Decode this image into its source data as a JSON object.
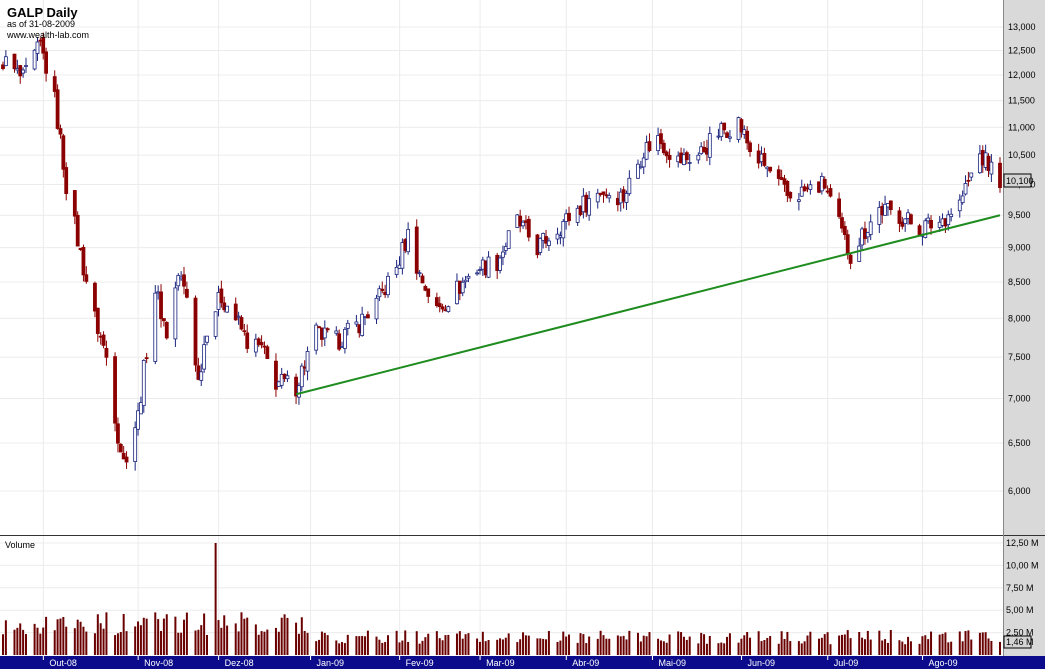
{
  "header": {
    "title": "GALP Daily",
    "as_of": "as of 31-08-2009",
    "source": "www.wealth-lab.com"
  },
  "volume_panel": {
    "label": "Volume",
    "current_label": "1,46 M"
  },
  "price_panel": {
    "current_label": "10,100"
  },
  "colors": {
    "up_body": "#ffffff",
    "up_outline": "#1a237e",
    "down_body": "#8b0000",
    "trendline": "#1e8c1e",
    "volume_bar": "#6a0000",
    "axis_strip": "#0b0b8c",
    "label_bg": "#d4d4d4"
  },
  "chart_data": [
    {
      "type": "candlestick",
      "title": "GALP Daily",
      "subtitle": "as of 31-08-2009",
      "x_tick_labels": [
        "Out-08",
        "Nov-08",
        "Dez-08",
        "Jan-09",
        "Fev-09",
        "Mar-09",
        "Abr-09",
        "Mai-09",
        "Jun-09",
        "Jul-09",
        "Ago-09"
      ],
      "x_range": [
        "2008-09-18",
        "2009-08-31"
      ],
      "y_tick_labels": [
        "13,000",
        "12,500",
        "12,000",
        "11,500",
        "11,000",
        "10,500",
        "10,000",
        "9,500",
        "9,000",
        "8,500",
        "8,000",
        "7,500",
        "7,000",
        "6,500",
        "6,000"
      ],
      "y_scale": "log",
      "ylim": [
        5500,
        13500
      ],
      "last_close": 10.1,
      "close_path": [
        [
          "2008-09-18",
          12.3
        ],
        [
          "2008-09-25",
          11.9
        ],
        [
          "2008-10-01",
          12.6
        ],
        [
          "2008-10-06",
          11.5
        ],
        [
          "2008-10-10",
          10.0
        ],
        [
          "2008-10-15",
          8.9
        ],
        [
          "2008-10-20",
          8.0
        ],
        [
          "2008-10-24",
          7.5
        ],
        [
          "2008-10-28",
          6.6
        ],
        [
          "2008-10-30",
          6.3
        ],
        [
          "2008-11-04",
          6.8
        ],
        [
          "2008-11-07",
          7.6
        ],
        [
          "2008-11-10",
          8.4
        ],
        [
          "2008-11-14",
          7.8
        ],
        [
          "2008-11-18",
          8.6
        ],
        [
          "2008-11-21",
          8.3
        ],
        [
          "2008-11-25",
          7.2
        ],
        [
          "2008-11-28",
          7.9
        ],
        [
          "2008-12-03",
          8.3
        ],
        [
          "2008-12-08",
          8.0
        ],
        [
          "2008-12-12",
          7.7
        ],
        [
          "2008-12-17",
          7.6
        ],
        [
          "2008-12-22",
          7.2
        ],
        [
          "2008-12-29",
          7.15
        ],
        [
          "2009-01-05",
          7.8
        ],
        [
          "2009-01-12",
          7.7
        ],
        [
          "2009-01-19",
          7.9
        ],
        [
          "2009-01-26",
          8.2
        ],
        [
          "2009-02-02",
          8.7
        ],
        [
          "2009-02-06",
          9.2
        ],
        [
          "2009-02-10",
          8.6
        ],
        [
          "2009-02-16",
          8.1
        ],
        [
          "2009-02-23",
          8.4
        ],
        [
          "2009-03-02",
          8.7
        ],
        [
          "2009-03-09",
          8.8
        ],
        [
          "2009-03-16",
          9.4
        ],
        [
          "2009-03-23",
          9.0
        ],
        [
          "2009-03-30",
          9.3
        ],
        [
          "2009-04-06",
          9.6
        ],
        [
          "2009-04-14",
          9.9
        ],
        [
          "2009-04-22",
          9.8
        ],
        [
          "2009-04-29",
          10.6
        ],
        [
          "2009-05-04",
          10.8
        ],
        [
          "2009-05-11",
          10.4
        ],
        [
          "2009-05-18",
          10.5
        ],
        [
          "2009-05-25",
          10.9
        ],
        [
          "2009-06-01",
          11.1
        ],
        [
          "2009-06-05",
          10.6
        ],
        [
          "2009-06-12",
          10.2
        ],
        [
          "2009-06-18",
          9.8
        ],
        [
          "2009-06-25",
          9.9
        ],
        [
          "2009-07-01",
          10.0
        ],
        [
          "2009-07-07",
          9.2
        ],
        [
          "2009-07-10",
          8.9
        ],
        [
          "2009-07-14",
          9.2
        ],
        [
          "2009-07-20",
          9.6
        ],
        [
          "2009-07-27",
          9.5
        ],
        [
          "2009-08-03",
          9.3
        ],
        [
          "2009-08-10",
          9.4
        ],
        [
          "2009-08-17",
          9.7
        ],
        [
          "2009-08-24",
          10.5
        ],
        [
          "2009-08-31",
          10.1
        ]
      ],
      "trendline": {
        "start": [
          "2008-12-29",
          7.05
        ],
        "end": [
          "2009-08-31",
          9.5
        ]
      }
    },
    {
      "type": "bar",
      "ylabel": "Volume",
      "y_tick_labels": [
        "12,50 M",
        "10,00 M",
        "7,50 M",
        "5,00 M",
        "2,50 M"
      ],
      "ylim": [
        0,
        12.5
      ],
      "unit": "M",
      "last_value": 1.46,
      "spike": [
        "2008-12-01",
        12.5
      ]
    }
  ]
}
